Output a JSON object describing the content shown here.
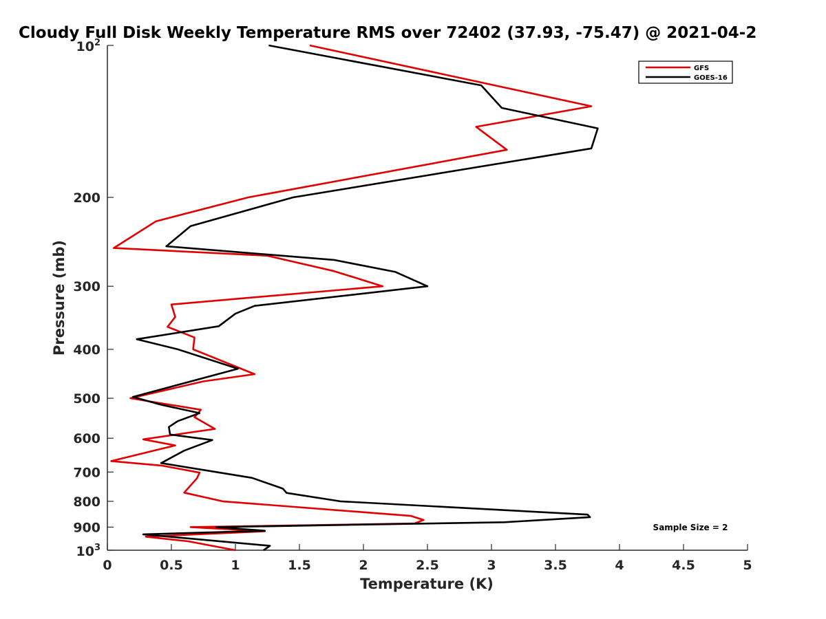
{
  "chart_data": {
    "type": "line",
    "title": "Cloudy Full Disk Weekly Temperature RMS over 72402 (37.93, -75.47) @ 2021-04-2",
    "xlabel": "Temperature (K)",
    "ylabel": "Pressure (mb)",
    "xlim": [
      0,
      5
    ],
    "ylim": [
      1000,
      100
    ],
    "yscale": "log",
    "x_ticks": [
      "0",
      "0.5",
      "1",
      "1.5",
      "2",
      "2.5",
      "3",
      "3.5",
      "4",
      "4.5",
      "5"
    ],
    "y_ticks": [
      {
        "value": 100,
        "base": "10",
        "exp": "2"
      },
      {
        "value": 200,
        "label": "200"
      },
      {
        "value": 300,
        "label": "300"
      },
      {
        "value": 400,
        "label": "400"
      },
      {
        "value": 500,
        "label": "500"
      },
      {
        "value": 600,
        "label": "600"
      },
      {
        "value": 700,
        "label": "700"
      },
      {
        "value": 800,
        "label": "800"
      },
      {
        "value": 900,
        "label": "900"
      },
      {
        "value": 1000,
        "base": "10",
        "exp": "3"
      }
    ],
    "legend_position": "top-right",
    "annotation": "Sample Size = 2",
    "series": [
      {
        "name": "GFS",
        "color": "#e00000",
        "points": [
          {
            "x": 1.58,
            "p": 100
          },
          {
            "x": 3.78,
            "p": 132
          },
          {
            "x": 2.88,
            "p": 145
          },
          {
            "x": 3.12,
            "p": 161
          },
          {
            "x": 1.1,
            "p": 200
          },
          {
            "x": 0.38,
            "p": 223
          },
          {
            "x": 0.05,
            "p": 252
          },
          {
            "x": 1.25,
            "p": 261
          },
          {
            "x": 1.77,
            "p": 280
          },
          {
            "x": 2.15,
            "p": 300
          },
          {
            "x": 0.5,
            "p": 326
          },
          {
            "x": 0.53,
            "p": 345
          },
          {
            "x": 0.47,
            "p": 361
          },
          {
            "x": 0.68,
            "p": 379
          },
          {
            "x": 0.67,
            "p": 400
          },
          {
            "x": 1.15,
            "p": 448
          },
          {
            "x": 0.75,
            "p": 463
          },
          {
            "x": 0.18,
            "p": 500
          },
          {
            "x": 0.73,
            "p": 527
          },
          {
            "x": 0.68,
            "p": 545
          },
          {
            "x": 0.84,
            "p": 575
          },
          {
            "x": 0.28,
            "p": 603
          },
          {
            "x": 0.53,
            "p": 620
          },
          {
            "x": 0.03,
            "p": 666
          },
          {
            "x": 0.43,
            "p": 680
          },
          {
            "x": 0.72,
            "p": 702
          },
          {
            "x": 0.7,
            "p": 720
          },
          {
            "x": 0.6,
            "p": 769
          },
          {
            "x": 0.9,
            "p": 800
          },
          {
            "x": 2.37,
            "p": 855
          },
          {
            "x": 2.47,
            "p": 871
          },
          {
            "x": 2.4,
            "p": 885
          },
          {
            "x": 0.65,
            "p": 900
          },
          {
            "x": 1.23,
            "p": 917
          },
          {
            "x": 0.3,
            "p": 940
          },
          {
            "x": 0.63,
            "p": 960
          },
          {
            "x": 1.0,
            "p": 1000
          }
        ]
      },
      {
        "name": "GOES-16",
        "color": "#000000",
        "points": [
          {
            "x": 1.26,
            "p": 100
          },
          {
            "x": 2.92,
            "p": 120
          },
          {
            "x": 3.08,
            "p": 133
          },
          {
            "x": 3.83,
            "p": 146
          },
          {
            "x": 3.78,
            "p": 160
          },
          {
            "x": 1.45,
            "p": 200
          },
          {
            "x": 0.65,
            "p": 228
          },
          {
            "x": 0.46,
            "p": 250
          },
          {
            "x": 1.77,
            "p": 266
          },
          {
            "x": 2.25,
            "p": 281
          },
          {
            "x": 2.5,
            "p": 300
          },
          {
            "x": 1.15,
            "p": 328
          },
          {
            "x": 1.0,
            "p": 340
          },
          {
            "x": 0.87,
            "p": 360
          },
          {
            "x": 0.23,
            "p": 382
          },
          {
            "x": 0.55,
            "p": 400
          },
          {
            "x": 1.02,
            "p": 437
          },
          {
            "x": 0.2,
            "p": 497
          },
          {
            "x": 0.42,
            "p": 515
          },
          {
            "x": 0.72,
            "p": 535
          },
          {
            "x": 0.55,
            "p": 555
          },
          {
            "x": 0.48,
            "p": 570
          },
          {
            "x": 0.49,
            "p": 590
          },
          {
            "x": 0.82,
            "p": 605
          },
          {
            "x": 0.6,
            "p": 635
          },
          {
            "x": 0.42,
            "p": 672
          },
          {
            "x": 0.85,
            "p": 700
          },
          {
            "x": 1.13,
            "p": 719
          },
          {
            "x": 1.37,
            "p": 755
          },
          {
            "x": 1.4,
            "p": 770
          },
          {
            "x": 1.82,
            "p": 800
          },
          {
            "x": 3.75,
            "p": 850
          },
          {
            "x": 3.77,
            "p": 860
          },
          {
            "x": 3.1,
            "p": 880
          },
          {
            "x": 0.85,
            "p": 900
          },
          {
            "x": 1.23,
            "p": 915
          },
          {
            "x": 0.28,
            "p": 930
          },
          {
            "x": 1.27,
            "p": 980
          },
          {
            "x": 1.22,
            "p": 1000
          }
        ]
      }
    ]
  }
}
